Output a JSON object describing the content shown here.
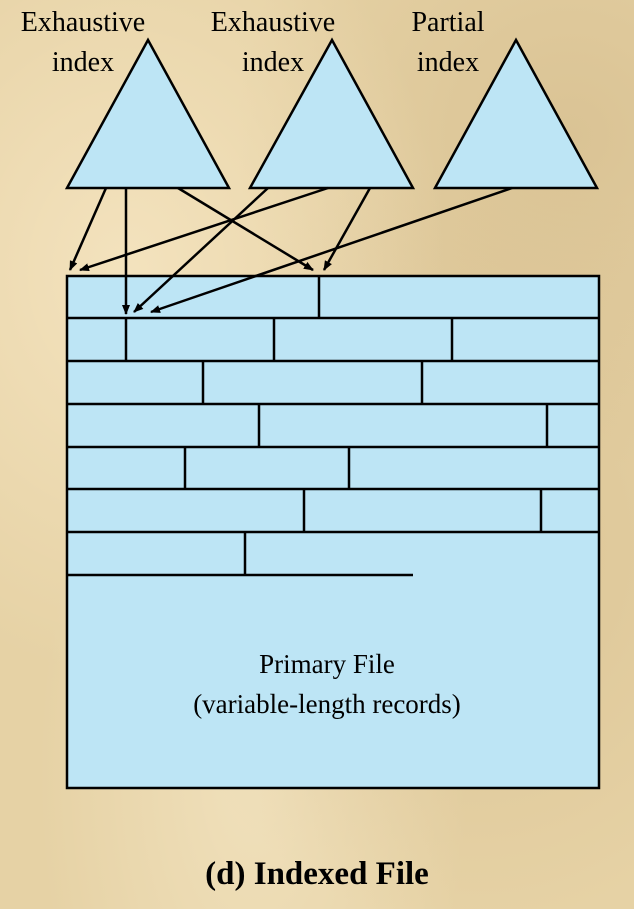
{
  "indexes": [
    {
      "line1": "Exhaustive",
      "line2": "index"
    },
    {
      "line1": "Exhaustive",
      "line2": "index"
    },
    {
      "line1": "Partial",
      "line2": "index"
    }
  ],
  "primary_file": {
    "line1": "Primary File",
    "line2": "(variable-length records)"
  },
  "caption": "(d) Indexed File",
  "colors": {
    "fill": "#bde5f5",
    "stroke": "#000000"
  }
}
